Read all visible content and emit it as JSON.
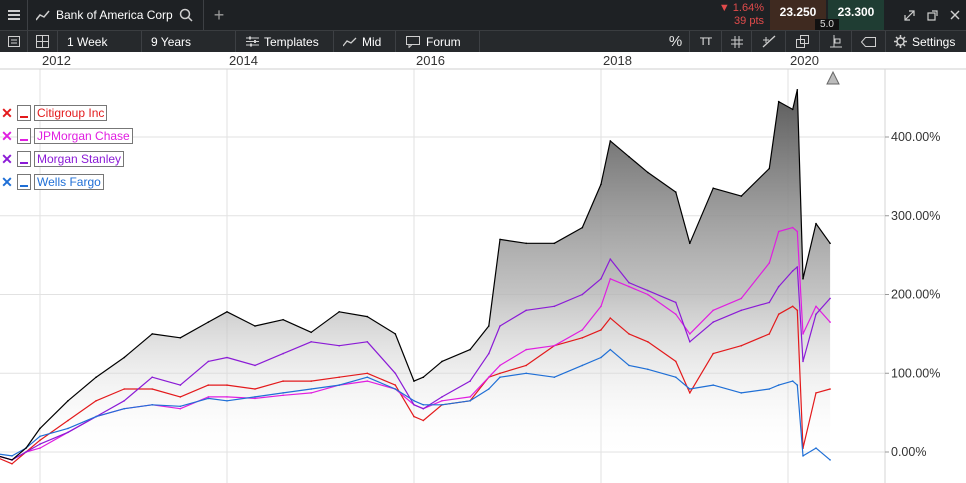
{
  "topbar": {
    "title": "Bank of America Corp",
    "add_label": "+",
    "change_pct": "▼ 1.64%",
    "change_pts": "39 pts",
    "bid": "23.250",
    "ask": "23.300",
    "spread": "5.0"
  },
  "toolbar": {
    "interval": "1 Week",
    "period": "9 Years",
    "templates": "Templates",
    "price_type": "Mid",
    "forum": "Forum",
    "percent_icon": "%",
    "text_icon": "TT",
    "settings": "Settings"
  },
  "chart_data": {
    "type": "line",
    "x_axis_ticks": [
      "2012",
      "2014",
      "2016",
      "2018",
      "2020"
    ],
    "y_axis_ticks": [
      "0.00%",
      "100.00%",
      "200.00%",
      "300.00%",
      "400.00%"
    ],
    "ylim": [
      -20,
      475
    ],
    "y_scale": "percent change",
    "legend_position": "top-left",
    "series": [
      {
        "name": "Bank of America Corp",
        "color": "#000000",
        "style": "area-gradient",
        "x": [
          2011.4,
          2011.7,
          2011.85,
          2012.0,
          2012.3,
          2012.6,
          2012.9,
          2013.2,
          2013.5,
          2013.8,
          2014.0,
          2014.3,
          2014.6,
          2014.9,
          2015.2,
          2015.5,
          2015.8,
          2016.0,
          2016.1,
          2016.3,
          2016.6,
          2016.8,
          2016.92,
          2017.2,
          2017.5,
          2017.8,
          2018.0,
          2018.1,
          2018.3,
          2018.5,
          2018.8,
          2018.95,
          2019.2,
          2019.5,
          2019.8,
          2019.9,
          2020.05,
          2020.1,
          2020.16,
          2020.3,
          2020.45
        ],
        "values": [
          0,
          -10,
          5,
          30,
          65,
          95,
          120,
          150,
          145,
          165,
          178,
          160,
          168,
          152,
          178,
          172,
          150,
          90,
          95,
          115,
          130,
          160,
          270,
          265,
          265,
          285,
          340,
          395,
          375,
          355,
          330,
          265,
          335,
          325,
          360,
          445,
          435,
          460,
          220,
          290,
          265
        ]
      },
      {
        "name": "Citigroup Inc",
        "color": "#e31a1c",
        "x": [
          2011.4,
          2011.7,
          2011.85,
          2012.0,
          2012.3,
          2012.6,
          2012.9,
          2013.2,
          2013.5,
          2013.8,
          2014.0,
          2014.3,
          2014.6,
          2014.9,
          2015.2,
          2015.5,
          2015.8,
          2016.0,
          2016.1,
          2016.3,
          2016.6,
          2016.8,
          2016.92,
          2017.2,
          2017.5,
          2017.8,
          2018.0,
          2018.1,
          2018.3,
          2018.5,
          2018.8,
          2018.95,
          2019.2,
          2019.5,
          2019.8,
          2019.9,
          2020.05,
          2020.1,
          2020.16,
          2020.3,
          2020.45
        ],
        "values": [
          0,
          -15,
          0,
          15,
          40,
          65,
          80,
          80,
          70,
          85,
          85,
          80,
          90,
          90,
          95,
          100,
          85,
          45,
          40,
          60,
          65,
          95,
          100,
          110,
          135,
          145,
          155,
          170,
          150,
          140,
          115,
          75,
          125,
          135,
          150,
          175,
          185,
          180,
          5,
          75,
          80
        ]
      },
      {
        "name": "JPMorgan Chase",
        "color": "#e01ee0",
        "x": [
          2011.4,
          2011.7,
          2011.85,
          2012.0,
          2012.3,
          2012.6,
          2012.9,
          2013.2,
          2013.5,
          2013.8,
          2014.0,
          2014.3,
          2014.6,
          2014.9,
          2015.2,
          2015.5,
          2015.8,
          2016.0,
          2016.1,
          2016.3,
          2016.6,
          2016.8,
          2016.92,
          2017.2,
          2017.5,
          2017.8,
          2018.0,
          2018.1,
          2018.3,
          2018.5,
          2018.8,
          2018.95,
          2019.2,
          2019.5,
          2019.8,
          2019.9,
          2020.05,
          2020.1,
          2020.16,
          2020.3,
          2020.45
        ],
        "values": [
          0,
          -10,
          0,
          5,
          25,
          45,
          55,
          60,
          55,
          70,
          70,
          68,
          72,
          75,
          85,
          90,
          80,
          60,
          55,
          65,
          70,
          95,
          110,
          130,
          135,
          155,
          185,
          220,
          210,
          200,
          175,
          150,
          180,
          195,
          240,
          280,
          285,
          280,
          150,
          185,
          165
        ]
      },
      {
        "name": "Morgan Stanley",
        "color": "#8b1bd6",
        "x": [
          2011.4,
          2011.7,
          2011.85,
          2012.0,
          2012.3,
          2012.6,
          2012.9,
          2013.2,
          2013.5,
          2013.8,
          2014.0,
          2014.3,
          2014.6,
          2014.9,
          2015.2,
          2015.5,
          2015.8,
          2016.0,
          2016.1,
          2016.3,
          2016.6,
          2016.8,
          2016.92,
          2017.2,
          2017.5,
          2017.8,
          2018.0,
          2018.1,
          2018.3,
          2018.5,
          2018.8,
          2018.95,
          2019.2,
          2019.5,
          2019.8,
          2019.9,
          2020.05,
          2020.1,
          2020.16,
          2020.3,
          2020.45
        ],
        "values": [
          0,
          -10,
          0,
          10,
          25,
          45,
          65,
          95,
          85,
          115,
          120,
          110,
          125,
          140,
          135,
          140,
          100,
          60,
          55,
          70,
          90,
          125,
          160,
          180,
          185,
          200,
          220,
          245,
          215,
          205,
          190,
          140,
          165,
          180,
          190,
          210,
          230,
          235,
          115,
          175,
          195
        ]
      },
      {
        "name": "Wells Fargo",
        "color": "#1f6fd6",
        "x": [
          2011.4,
          2011.7,
          2011.85,
          2012.0,
          2012.3,
          2012.6,
          2012.9,
          2013.2,
          2013.5,
          2013.8,
          2014.0,
          2014.3,
          2014.6,
          2014.9,
          2015.2,
          2015.5,
          2015.8,
          2016.0,
          2016.1,
          2016.3,
          2016.6,
          2016.8,
          2016.92,
          2017.2,
          2017.5,
          2017.8,
          2018.0,
          2018.1,
          2018.3,
          2018.5,
          2018.8,
          2018.95,
          2019.2,
          2019.5,
          2019.8,
          2019.9,
          2020.05,
          2020.1,
          2020.16,
          2020.3,
          2020.45
        ],
        "values": [
          0,
          -5,
          5,
          20,
          30,
          45,
          55,
          60,
          58,
          68,
          65,
          70,
          75,
          80,
          85,
          95,
          80,
          65,
          60,
          60,
          65,
          80,
          95,
          100,
          95,
          110,
          120,
          130,
          110,
          105,
          95,
          80,
          85,
          75,
          80,
          85,
          90,
          85,
          -5,
          5,
          -10
        ]
      }
    ]
  }
}
